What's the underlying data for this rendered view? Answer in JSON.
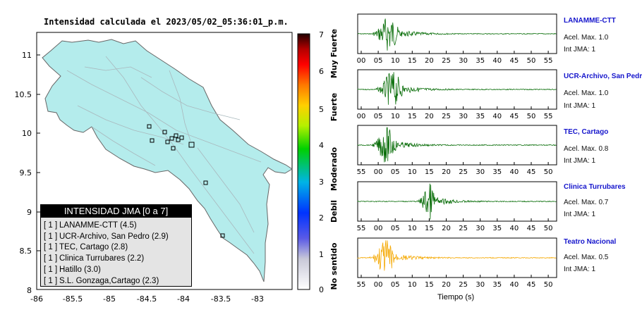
{
  "map": {
    "title": "Intensidad calculada el 2023/05/02_05:36:01_p.m.",
    "y_ticks": [
      "11",
      "10.5",
      "10",
      "9.5",
      "9",
      "8.5",
      "8"
    ],
    "x_ticks": [
      "-86",
      "-85.5",
      "-85",
      "-84.5",
      "-84",
      "-83.5",
      "-83"
    ]
  },
  "legend": {
    "header": "INTENSIDAD JMA [0 a 7]",
    "items": [
      {
        "box": "[ 1 ]",
        "label": "LANAMME-CTT (4.5)"
      },
      {
        "box": "[ 1 ]",
        "label": "UCR-Archivo, San Pedro (2.9)"
      },
      {
        "box": "[ 1 ]",
        "label": "TEC, Cartago (2.8)"
      },
      {
        "box": "[ 1 ]",
        "label": "Clinica Turrubares (2.2)"
      },
      {
        "box": "[ 1 ]",
        "label": "Hatillo (3.0)"
      },
      {
        "box": "[ 1 ]",
        "label": "S.L. Gonzaga,Cartago (2.3)"
      }
    ]
  },
  "colorbar": {
    "ticks": [
      "7",
      "6",
      "5",
      "4",
      "3",
      "2",
      "1",
      "0"
    ],
    "labels": [
      "Muy Fuerte",
      "Fuerte",
      "Moderado",
      "Debil",
      "No sentido"
    ]
  },
  "stations": [
    {
      "name": "LANAMME-CTT",
      "accel": "Acel. Max. 1.0",
      "jma": "Int JMA: 1",
      "color": "#0a6e0a",
      "ticks": [
        "00",
        "05",
        "10",
        "15",
        "20",
        "25",
        "30",
        "35",
        "40",
        "45",
        "50",
        "55"
      ]
    },
    {
      "name": "UCR-Archivo, San Pedro",
      "accel": "Acel. Max. 1.0",
      "jma": "Int JMA: 1",
      "color": "#0a6e0a",
      "ticks": [
        "00",
        "05",
        "10",
        "15",
        "20",
        "25",
        "30",
        "35",
        "40",
        "45",
        "50",
        "55"
      ]
    },
    {
      "name": "TEC, Cartago",
      "accel": "Acel. Max. 0.8",
      "jma": "Int JMA: 1",
      "color": "#0a6e0a",
      "ticks": [
        "55",
        "00",
        "05",
        "10",
        "15",
        "20",
        "25",
        "30",
        "35",
        "40",
        "45",
        "50"
      ]
    },
    {
      "name": "Clinica Turrubares",
      "accel": "Acel. Max. 0.7",
      "jma": "Int JMA: 1",
      "color": "#0a6e0a",
      "ticks": [
        "55",
        "00",
        "05",
        "10",
        "15",
        "20",
        "25",
        "30",
        "35",
        "40",
        "45",
        "50"
      ]
    },
    {
      "name": "Teatro Nacional",
      "accel": "Acel. Max. 0.5",
      "jma": "Int JMA: 1",
      "color": "#f5a800",
      "ticks": [
        "55",
        "00",
        "05",
        "10",
        "15",
        "20",
        "25",
        "30",
        "35",
        "40",
        "45",
        "50"
      ]
    }
  ],
  "waveform_xlabel": "Tiempo (s)",
  "chart_data": [
    {
      "type": "heatmap",
      "title": "Intensidad calculada el 2023/05/02_05:36:01_p.m.",
      "x_range": [
        -86,
        -82.7
      ],
      "y_range": [
        8,
        11.3
      ]
    },
    {
      "type": "line",
      "xlabel": "Tiempo (s)",
      "series": [
        {
          "name": "LANAMME-CTT",
          "peak_accel": 1.0,
          "jma": 1
        },
        {
          "name": "UCR-Archivo, San Pedro",
          "peak_accel": 1.0,
          "jma": 1
        },
        {
          "name": "TEC, Cartago",
          "peak_accel": 0.8,
          "jma": 1
        },
        {
          "name": "Clinica Turrubares",
          "peak_accel": 0.7,
          "jma": 1
        },
        {
          "name": "Teatro Nacional",
          "peak_accel": 0.5,
          "jma": 1
        }
      ]
    }
  ]
}
